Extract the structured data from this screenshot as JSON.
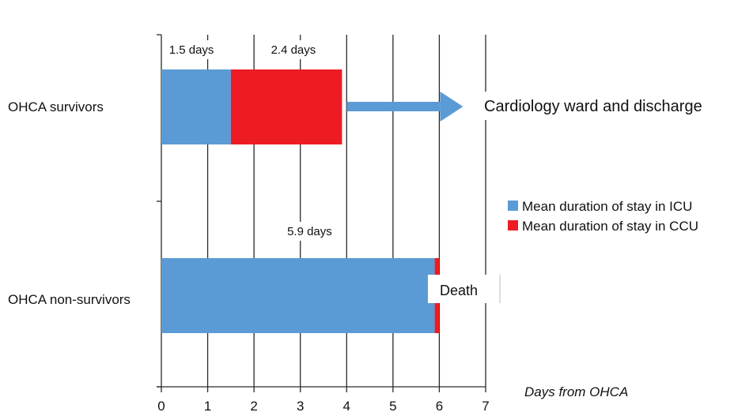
{
  "chart_data": {
    "type": "bar",
    "orientation": "horizontal",
    "stacked": true,
    "categories": [
      "OHCA survivors",
      "OHCA non-survivors"
    ],
    "series": [
      {
        "name": "Mean duration of stay in ICU",
        "color": "#5b9bd5",
        "values": [
          1.5,
          5.9
        ]
      },
      {
        "name": "Mean duration of stay in CCU",
        "color": "#ed1c24",
        "values": [
          2.4,
          0.1
        ]
      }
    ],
    "data_labels": [
      {
        "category": 0,
        "series": 0,
        "text": "1.5 days"
      },
      {
        "category": 0,
        "series": 1,
        "text": "2.4 days"
      },
      {
        "category": 1,
        "series": 0,
        "text": "5.9 days"
      }
    ],
    "xlim": [
      0,
      7
    ],
    "xticks": [
      "0",
      "1",
      "2",
      "3",
      "4",
      "5",
      "6",
      "7"
    ],
    "xlabel": "Days from OHCA",
    "ylabel": "",
    "grid": "vertical",
    "legend_position": "right",
    "annotations": {
      "arrow_text": "Cardiology ward and discharge",
      "arrow_color": "#5b9bd5",
      "death_text": "Death"
    }
  }
}
